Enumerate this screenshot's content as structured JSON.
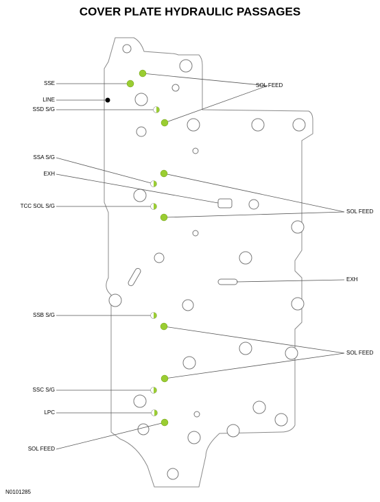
{
  "title": "COVER PLATE HYDRAULIC PASSAGES",
  "left_labels": [
    "SSE",
    "LINE",
    "SSD S/G",
    "SSA S/G",
    "EXH",
    "TCC SOL S/G",
    "SSB S/G",
    "SSC S/G",
    "LPC",
    "SOL FEED"
  ],
  "right_labels": [
    "SOL FEED",
    "SOL FEED",
    "EXH",
    "SOL FEED"
  ],
  "figure_id": "N0101285"
}
